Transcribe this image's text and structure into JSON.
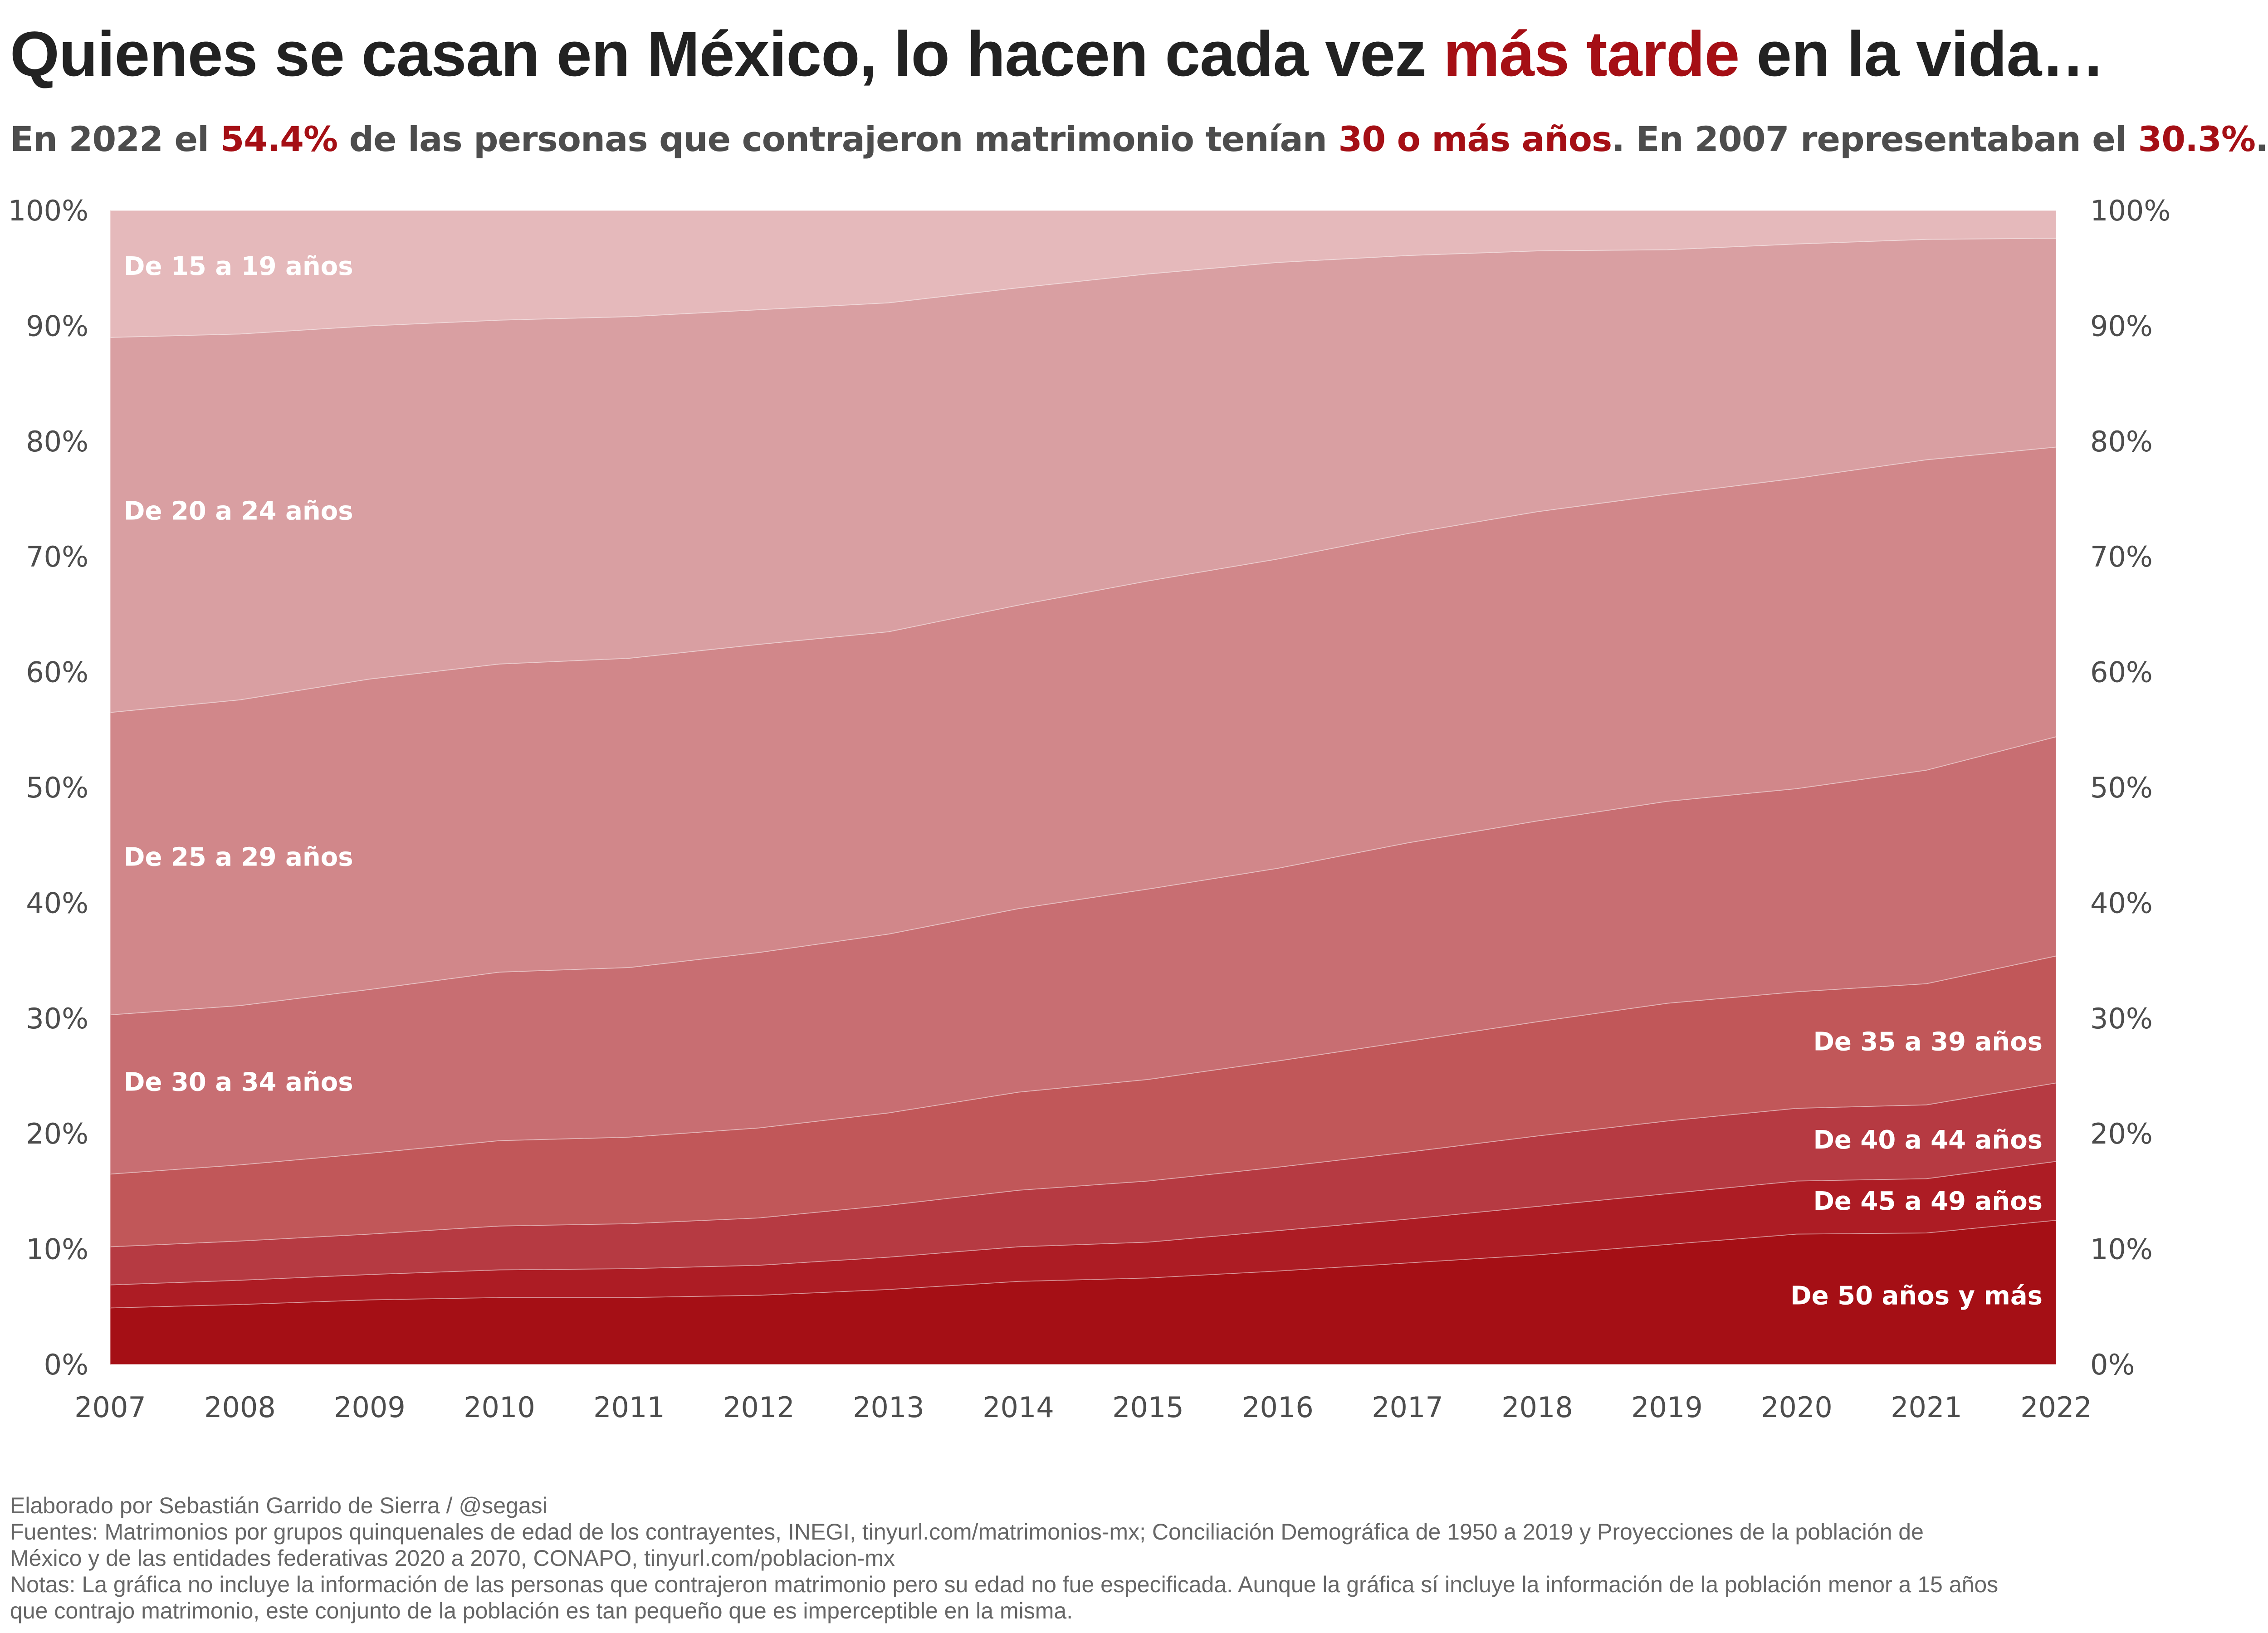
{
  "header": {
    "title_pre": "Quienes se casan en México, lo hacen cada vez ",
    "title_hl": "más tarde",
    "title_post": " en la vida…",
    "subtitle_parts": [
      {
        "text": "En 2022 el ",
        "hl": false
      },
      {
        "text": "54.4%",
        "hl": true
      },
      {
        "text": " de las personas que contrajeron matrimonio tenían ",
        "hl": false
      },
      {
        "text": "30 o más años",
        "hl": true
      },
      {
        "text": ". En 2007 representaban el ",
        "hl": false
      },
      {
        "text": "30.3%",
        "hl": true
      },
      {
        "text": ".",
        "hl": false
      }
    ]
  },
  "chart_data": {
    "type": "area",
    "stacked": true,
    "normalized": true,
    "x": [
      2007,
      2008,
      2009,
      2010,
      2011,
      2012,
      2013,
      2014,
      2015,
      2016,
      2017,
      2018,
      2019,
      2020,
      2021,
      2022
    ],
    "y_ticks": [
      "0%",
      "10%",
      "20%",
      "30%",
      "40%",
      "50%",
      "60%",
      "70%",
      "80%",
      "90%",
      "100%"
    ],
    "ylim": [
      0,
      100
    ],
    "y_axis_both_sides": true,
    "grid": false,
    "cumulative_boundaries": [
      {
        "upper_of": "De 50 años y más",
        "values": [
          4.9,
          5.2,
          5.6,
          5.8,
          5.8,
          6.0,
          6.5,
          7.2,
          7.5,
          8.1,
          8.8,
          9.5,
          10.4,
          11.3,
          11.4,
          12.5
        ]
      },
      {
        "upper_of": "De 45 a 49 años",
        "values": [
          6.9,
          7.3,
          7.8,
          8.2,
          8.3,
          8.6,
          9.3,
          10.2,
          10.6,
          11.6,
          12.6,
          13.7,
          14.8,
          15.9,
          16.1,
          17.6
        ]
      },
      {
        "upper_of": "De 40 a 44 años",
        "values": [
          10.2,
          10.7,
          11.3,
          12.0,
          12.2,
          12.7,
          13.8,
          15.1,
          15.9,
          17.1,
          18.4,
          19.8,
          21.1,
          22.2,
          22.5,
          24.4
        ]
      },
      {
        "upper_of": "De 35 a 39 años",
        "values": [
          16.5,
          17.3,
          18.3,
          19.4,
          19.7,
          20.5,
          21.8,
          23.6,
          24.7,
          26.3,
          28.0,
          29.7,
          31.3,
          32.3,
          33.0,
          35.4
        ]
      },
      {
        "upper_of": "De 30 a 34 años",
        "values": [
          30.3,
          31.1,
          32.5,
          34.0,
          34.4,
          35.7,
          37.3,
          39.5,
          41.2,
          43.0,
          45.2,
          47.1,
          48.8,
          49.9,
          51.5,
          54.4
        ]
      },
      {
        "upper_of": "De 25 a 29 años",
        "values": [
          56.5,
          57.6,
          59.4,
          60.7,
          61.2,
          62.4,
          63.5,
          65.8,
          67.9,
          69.8,
          72.0,
          73.9,
          75.4,
          76.8,
          78.4,
          79.5
        ]
      },
      {
        "upper_of": "De 20 a 24 años",
        "values": [
          89.0,
          89.3,
          90.0,
          90.5,
          90.8,
          91.4,
          92.0,
          93.3,
          94.5,
          95.5,
          96.1,
          96.5,
          96.6,
          97.1,
          97.5,
          97.6
        ]
      },
      {
        "upper_of": "De 15 a 19 años",
        "values": [
          100,
          100,
          100,
          100,
          100,
          100,
          100,
          100,
          100,
          100,
          100,
          100,
          100,
          100,
          100,
          100
        ]
      }
    ],
    "series": [
      {
        "name": "De 50 años y más",
        "color": "#a50f15"
      },
      {
        "name": "De 45 a 49 años",
        "color": "#ad1c24"
      },
      {
        "name": "De 40 a 44 años",
        "color": "#b63a42"
      },
      {
        "name": "De 35 a 39 años",
        "color": "#c15759"
      },
      {
        "name": "De 30 a 34 años",
        "color": "#c86e72"
      },
      {
        "name": "De 25 a 29 años",
        "color": "#d1878a"
      },
      {
        "name": "De 20 a 24 años",
        "color": "#d99fa2"
      },
      {
        "name": "De 15 a 19 años",
        "color": "#e5b9bb"
      }
    ],
    "labels": [
      {
        "series": "De 15 a 19 años",
        "text": "De 15 a 19 años",
        "anchor": "left",
        "at_x": 2007,
        "at_y": 95.2
      },
      {
        "series": "De 20 a 24 años",
        "text": "De 20 a 24 años",
        "anchor": "left",
        "at_x": 2007,
        "at_y": 74.0
      },
      {
        "series": "De 25 a 29 años",
        "text": "De 25 a 29 años",
        "anchor": "left",
        "at_x": 2007,
        "at_y": 44.0
      },
      {
        "series": "De 30 a 34 años",
        "text": "De 30 a 34 años",
        "anchor": "left",
        "at_x": 2007,
        "at_y": 24.5
      },
      {
        "series": "De 35 a 39 años",
        "text": "De 35 a 39 años",
        "anchor": "right",
        "at_x": 2022,
        "at_y": 28.0
      },
      {
        "series": "De 40 a 44 años",
        "text": "De 40 a 44 años",
        "anchor": "right",
        "at_x": 2022,
        "at_y": 19.5
      },
      {
        "series": "De 45 a 49 años",
        "text": "De 45 a 49 años",
        "anchor": "right",
        "at_x": 2022,
        "at_y": 14.2
      },
      {
        "series": "De 50 años y más",
        "text": "De 50 años y más",
        "anchor": "right",
        "at_x": 2022,
        "at_y": 6.0
      }
    ]
  },
  "footer": {
    "credit": "Elaborado por Sebastián Garrido de Sierra / @segasi",
    "sources_1": "Fuentes: Matrimonios por grupos quinquenales de edad de los contrayentes, INEGI, tinyurl.com/matrimonios-mx; Conciliación Demográfica de 1950 a 2019 y Proyecciones de la población de",
    "sources_2": "México y de las entidades federativas 2020 a 2070, CONAPO, tinyurl.com/poblacion-mx",
    "notes_1": "Notas: La gráfica no incluye la información de las personas que contrajeron matrimonio pero su edad no fue especificada. Aunque la gráfica sí incluye la información de la población menor a 15 años",
    "notes_2": "que contrajo matrimonio, este conjunto de la población es tan pequeño que es imperceptible en la misma."
  }
}
